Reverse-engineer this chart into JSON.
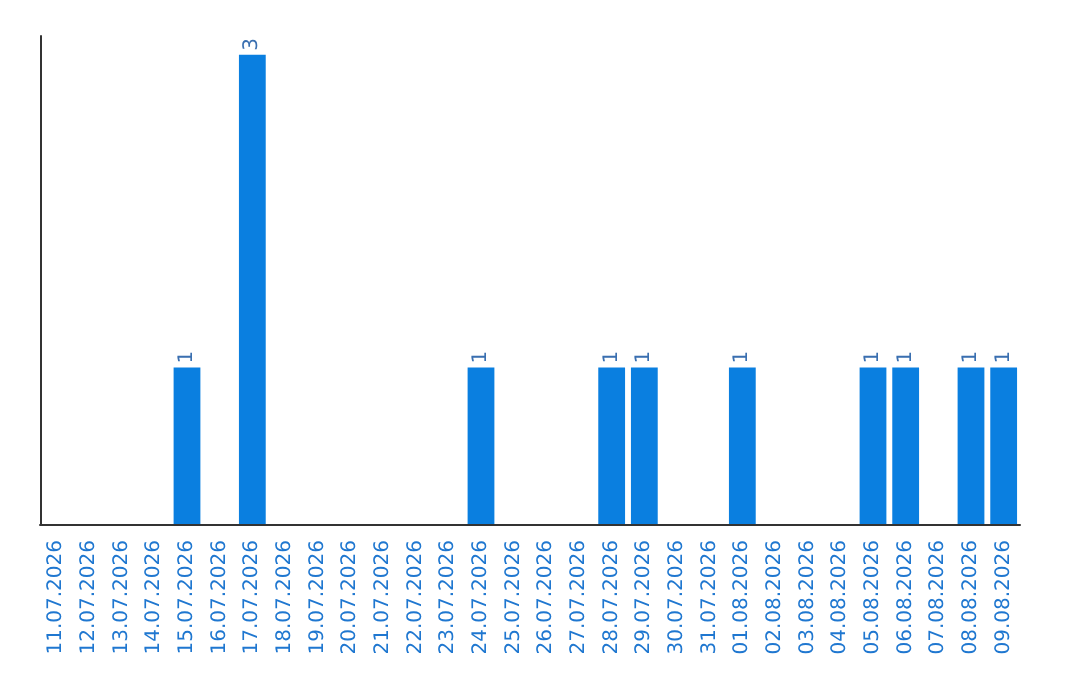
{
  "chart_data": {
    "type": "bar",
    "categories": [
      "11.07.2026",
      "12.07.2026",
      "13.07.2026",
      "14.07.2026",
      "15.07.2026",
      "16.07.2026",
      "17.07.2026",
      "18.07.2026",
      "19.07.2026",
      "20.07.2026",
      "21.07.2026",
      "22.07.2026",
      "23.07.2026",
      "24.07.2026",
      "25.07.2026",
      "26.07.2026",
      "27.07.2026",
      "28.07.2026",
      "29.07.2026",
      "30.07.2026",
      "31.07.2026",
      "01.08.2026",
      "02.08.2026",
      "03.08.2026",
      "04.08.2026",
      "05.08.2026",
      "06.08.2026",
      "07.08.2026",
      "08.08.2026",
      "09.08.2026"
    ],
    "values": [
      0,
      0,
      0,
      0,
      1,
      0,
      3,
      0,
      0,
      0,
      0,
      0,
      0,
      1,
      0,
      0,
      0,
      1,
      1,
      0,
      0,
      1,
      0,
      0,
      0,
      1,
      1,
      0,
      1,
      1
    ],
    "value_labels": [
      null,
      null,
      null,
      null,
      "1",
      null,
      "3",
      null,
      null,
      null,
      null,
      null,
      null,
      "1",
      null,
      null,
      null,
      "1",
      "1",
      null,
      null,
      "1",
      null,
      null,
      null,
      "1",
      "1",
      null,
      "1",
      "1"
    ],
    "color": "#0a7fe0"
  }
}
